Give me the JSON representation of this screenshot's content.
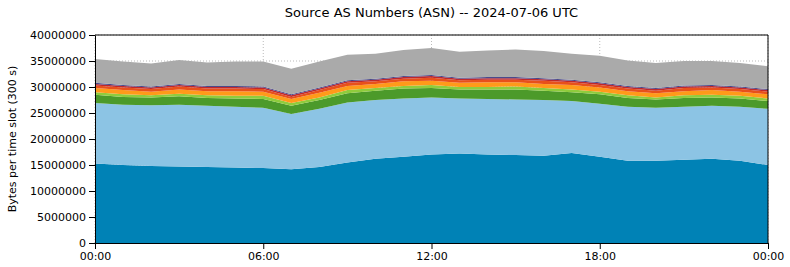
{
  "chart_data": {
    "type": "area",
    "stacked": true,
    "title": "Source AS Numbers (ASN) -- 2024-07-06 UTC",
    "y_label": "Bytes per time slot (300 s)",
    "grid": true,
    "x": [
      0,
      1,
      2,
      3,
      4,
      5,
      6,
      7,
      8,
      9,
      10,
      11,
      12,
      13,
      14,
      15,
      16,
      17,
      18,
      19,
      20,
      21,
      22,
      23,
      24
    ],
    "xlim": [
      0,
      24
    ],
    "xticks": [
      {
        "value": 0,
        "label": "00:00"
      },
      {
        "value": 6,
        "label": "06:00"
      },
      {
        "value": 12,
        "label": "12:00"
      },
      {
        "value": 18,
        "label": "18:00"
      },
      {
        "value": 24,
        "label": "00:00"
      }
    ],
    "ylim": [
      0,
      40000000
    ],
    "yticks": [
      0,
      5000000,
      10000000,
      15000000,
      20000000,
      25000000,
      30000000,
      35000000,
      40000000
    ],
    "series": [
      {
        "color": "#0082b6",
        "values": [
          15300000,
          15000000,
          14800000,
          14700000,
          14600000,
          14500000,
          14400000,
          14200000,
          14600000,
          15500000,
          16200000,
          16600000,
          17000000,
          17200000,
          17000000,
          16900000,
          16800000,
          17300000,
          16600000,
          15800000,
          15800000,
          16000000,
          16200000,
          15800000,
          15000000
        ]
      },
      {
        "color": "#8cc4e4",
        "values": [
          11600000,
          11600000,
          11700000,
          11900000,
          11800000,
          11700000,
          11600000,
          10600000,
          11200000,
          11500000,
          11300000,
          11200000,
          11000000,
          10600000,
          10700000,
          10700000,
          10700000,
          10000000,
          10200000,
          10400000,
          10200000,
          10200000,
          10200000,
          10400000,
          10800000
        ]
      },
      {
        "color": "#4c9a2a",
        "values": [
          1600000,
          1500000,
          1500000,
          1600000,
          1500000,
          1600000,
          1700000,
          1600000,
          1700000,
          1800000,
          1800000,
          1900000,
          1800000,
          1700000,
          1800000,
          1900000,
          1800000,
          1700000,
          1800000,
          1700000,
          1600000,
          1700000,
          1600000,
          1600000,
          1500000
        ]
      },
      {
        "color": "#8fcc3d",
        "values": [
          500000,
          500000,
          400000,
          500000,
          500000,
          500000,
          600000,
          500000,
          500000,
          600000,
          500000,
          500000,
          600000,
          500000,
          500000,
          600000,
          500000,
          500000,
          500000,
          500000,
          400000,
          500000,
          500000,
          500000,
          500000
        ]
      },
      {
        "color": "#ff9a1a",
        "values": [
          800000,
          800000,
          700000,
          800000,
          800000,
          900000,
          800000,
          800000,
          900000,
          800000,
          800000,
          900000,
          800000,
          800000,
          900000,
          800000,
          800000,
          900000,
          800000,
          800000,
          800000,
          800000,
          900000,
          800000,
          800000
        ]
      },
      {
        "color": "#e8501a",
        "values": [
          500000,
          500000,
          500000,
          600000,
          500000,
          500000,
          500000,
          400000,
          500000,
          600000,
          500000,
          500000,
          600000,
          500000,
          500000,
          500000,
          600000,
          500000,
          500000,
          500000,
          500000,
          600000,
          500000,
          500000,
          500000
        ]
      },
      {
        "color": "#c0282a",
        "values": [
          300000,
          300000,
          300000,
          300000,
          300000,
          300000,
          300000,
          300000,
          300000,
          300000,
          300000,
          300000,
          300000,
          300000,
          300000,
          300000,
          300000,
          300000,
          300000,
          300000,
          300000,
          300000,
          300000,
          300000,
          300000
        ]
      },
      {
        "color": "#4b4a8c",
        "values": [
          200000,
          200000,
          200000,
          200000,
          200000,
          200000,
          200000,
          200000,
          200000,
          200000,
          200000,
          200000,
          200000,
          200000,
          200000,
          200000,
          200000,
          200000,
          200000,
          200000,
          200000,
          200000,
          200000,
          200000,
          200000
        ]
      },
      {
        "color": "#aaaaaa",
        "values": [
          4600000,
          4500000,
          4400000,
          4600000,
          4500000,
          4700000,
          4800000,
          4900000,
          5000000,
          4900000,
          4800000,
          5000000,
          5200000,
          5000000,
          5100000,
          5300000,
          5200000,
          5000000,
          5100000,
          4900000,
          4800000,
          4700000,
          4600000,
          4500000,
          4400000
        ]
      }
    ]
  }
}
